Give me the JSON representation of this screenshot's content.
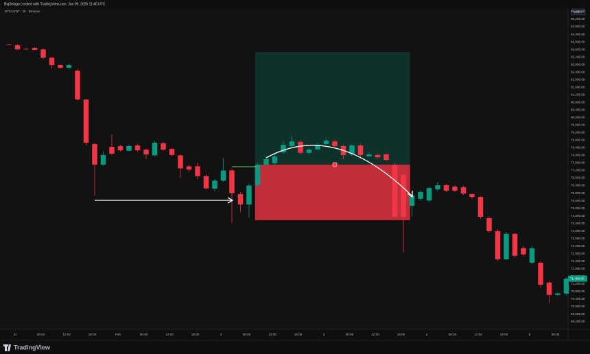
{
  "header": "BigSelaga created with TradingView.com, Jun 09, 2026 11:40 UTC",
  "brand": "TradingView",
  "chart_data": {
    "type": "candlestick",
    "title": "BTCUSDT · 2h · Binance",
    "currency": "USDT",
    "up_color": "#089981",
    "down_color": "#f23645",
    "open": [
      83870,
      83822,
      83640,
      83680,
      83600,
      83170,
      82770,
      82630,
      82480,
      80950,
      78600,
      77510,
      78450,
      78490,
      78240,
      78520,
      78300,
      78000,
      78640,
      78340,
      78000,
      77420,
      77420,
      76900,
      76240,
      76660,
      77200,
      75950,
      75400,
      76420,
      77510,
      77580,
      78160,
      78490,
      78710,
      78130,
      78310,
      78600,
      78740,
      78490,
      78050,
      78520,
      77950,
      78020,
      78050,
      77510,
      76970,
      75330,
      75700,
      75610,
      76200,
      76420,
      76350,
      76310,
      75950,
      75800,
      74680,
      73990,
      72500,
      73850,
      73090,
      72320,
      72320,
      71270,
      70620,
      70690
    ],
    "high": [
      83900,
      83880,
      83700,
      83720,
      83650,
      83200,
      82800,
      82850,
      82600,
      81000,
      78650,
      78200,
      79100,
      78550,
      78560,
      78600,
      78350,
      78750,
      78700,
      78400,
      78050,
      77500,
      77600,
      77000,
      76750,
      77860,
      77300,
      76050,
      76500,
      77600,
      77900,
      78100,
      78760,
      79060,
      78800,
      78400,
      78650,
      78900,
      78800,
      78550,
      78600,
      78600,
      78150,
      78100,
      78100,
      77600,
      77050,
      75950,
      76150,
      76350,
      76600,
      76500,
      76420,
      76400,
      76000,
      75850,
      74750,
      74100,
      73950,
      73900,
      73200,
      73200,
      72400,
      71350,
      70750,
      71550
    ],
    "low": [
      83840,
      83560,
      83580,
      83540,
      83080,
      82590,
      82580,
      82590,
      80900,
      78530,
      75880,
      77450,
      78000,
      78200,
      78200,
      78200,
      77800,
      77950,
      78250,
      77950,
      76800,
      77100,
      76750,
      76200,
      76100,
      76600,
      74430,
      75000,
      74700,
      76350,
      77450,
      77500,
      78100,
      78400,
      78050,
      78050,
      78250,
      78550,
      78400,
      77800,
      77950,
      77900,
      77900,
      77850,
      77700,
      74700,
      72870,
      74750,
      75600,
      75500,
      76100,
      76050,
      76050,
      75900,
      75700,
      74650,
      73900,
      72400,
      72450,
      72600,
      72650,
      72250,
      71000,
      70180,
      70550,
      70600
    ],
    "close": [
      83850,
      83605,
      83620,
      83570,
      83169,
      82770,
      82625,
      82770,
      80956,
      78670,
      77510,
      78020,
      78090,
      78270,
      78490,
      78270,
      78050,
      78670,
      78300,
      78020,
      77310,
      77250,
      76900,
      76250,
      76660,
      77200,
      76000,
      75400,
      76400,
      77510,
      77800,
      77940,
      78560,
      78740,
      78130,
      78310,
      78560,
      78780,
      78490,
      78020,
      78520,
      78020,
      78050,
      77900,
      77760,
      74750,
      74750,
      75880,
      76060,
      76270,
      76420,
      76130,
      76130,
      75980,
      75800,
      74750,
      73990,
      72500,
      73850,
      72690,
      72760,
      73090,
      71160,
      70620,
      70700,
      71480
    ],
    "position": {
      "target": 83460,
      "entry": 77510,
      "stop": 74570
    },
    "last_price": {
      "value": 71480,
      "label": "71,480.00"
    },
    "ylim": [
      68800,
      85780
    ],
    "yticks": [
      {
        "value": 85600,
        "label": "85,600.00"
      },
      {
        "value": 85200,
        "label": "85,200.00"
      },
      {
        "value": 84800,
        "label": "84,800.00"
      },
      {
        "value": 84400,
        "label": "84,400.00"
      },
      {
        "value": 84000,
        "label": "84,000.00"
      },
      {
        "value": 83600,
        "label": "83,600.00"
      },
      {
        "value": 83200,
        "label": "83,200.00"
      },
      {
        "value": 82800,
        "label": "82,800.00"
      },
      {
        "value": 82400,
        "label": "82,400.00"
      },
      {
        "value": 82000,
        "label": "82,000.00"
      },
      {
        "value": 81600,
        "label": "81,600.00"
      },
      {
        "value": 81200,
        "label": "81,200.00"
      },
      {
        "value": 80800,
        "label": "80,800.00"
      },
      {
        "value": 80400,
        "label": "80,400.00"
      },
      {
        "value": 80000,
        "label": "80,000.00"
      },
      {
        "value": 79600,
        "label": "79,600.00"
      },
      {
        "value": 79200,
        "label": "79,200.00"
      },
      {
        "value": 78800,
        "label": "78,800.00"
      },
      {
        "value": 78400,
        "label": "78,400.00"
      },
      {
        "value": 78000,
        "label": "78,000.00"
      },
      {
        "value": 77600,
        "label": "77,600.00"
      },
      {
        "value": 77200,
        "label": "77,200.00"
      },
      {
        "value": 76800,
        "label": "76,800.00"
      },
      {
        "value": 76400,
        "label": "76,400.00"
      },
      {
        "value": 76000,
        "label": "76,000.00"
      },
      {
        "value": 75600,
        "label": "75,600.00"
      },
      {
        "value": 75200,
        "label": "75,200.00"
      },
      {
        "value": 74800,
        "label": "74,800.00"
      },
      {
        "value": 74400,
        "label": "74,400.00"
      },
      {
        "value": 74000,
        "label": "74,000.00"
      },
      {
        "value": 73600,
        "label": "73,600.00"
      },
      {
        "value": 73200,
        "label": "73,200.00"
      },
      {
        "value": 72800,
        "label": "72,800.00"
      },
      {
        "value": 72400,
        "label": "72,400.00"
      },
      {
        "value": 72000,
        "label": "72,000.00"
      },
      {
        "value": 71600,
        "label": "71,600.00"
      },
      {
        "value": 71200,
        "label": "71,200.00"
      },
      {
        "value": 70800,
        "label": "70,800.00"
      },
      {
        "value": 70400,
        "label": "70,400.00"
      },
      {
        "value": 70000,
        "label": "70,000.00"
      },
      {
        "value": 69600,
        "label": "69,600.00"
      },
      {
        "value": 69200,
        "label": "69,200.00"
      }
    ],
    "time_labels": [
      "31",
      "06:00",
      "12:00",
      "18:00",
      "Feb",
      "06:00",
      "12:00",
      "18:00",
      "2",
      "06:00",
      "12:00",
      "18:00",
      "3",
      "06:00",
      "12:00",
      "18:00",
      "4",
      "06:00",
      "12:00",
      "18:00",
      "5",
      "06:00"
    ]
  }
}
